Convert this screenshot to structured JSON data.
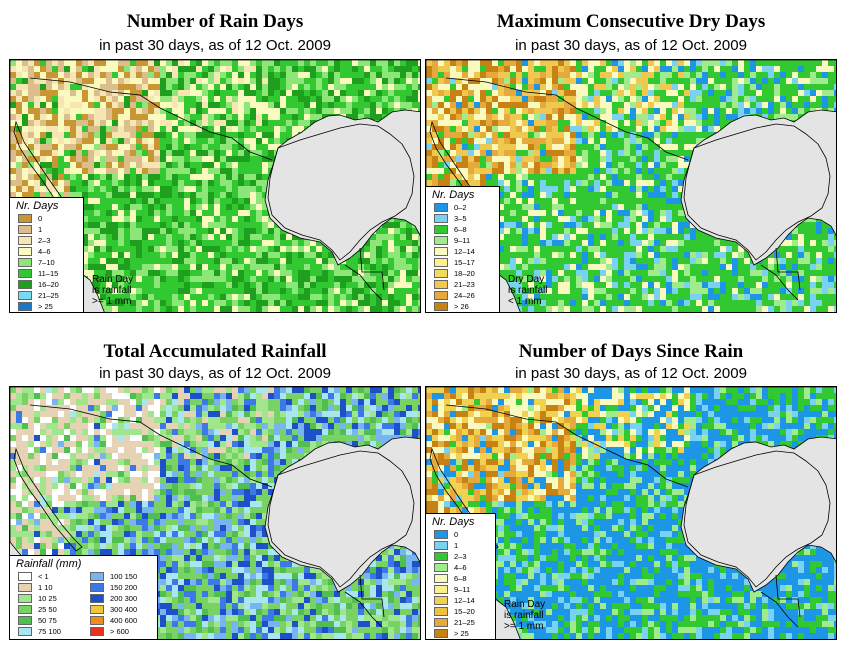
{
  "panels": [
    {
      "title": "Number of Rain Days",
      "subtitle": "in past 30 days, as of  12 Oct. 2009",
      "legend_title": "Nr. Days",
      "note": [
        "Rain Day",
        "is rainfall",
        ">= 1 mm"
      ],
      "legend": [
        {
          "label": "0",
          "color": "#c89632"
        },
        {
          "label": "1",
          "color": "#dcbe8c"
        },
        {
          "label": "2–3",
          "color": "#f5e6b4"
        },
        {
          "label": "4–6",
          "color": "#fafabe"
        },
        {
          "label": "7–10",
          "color": "#8ce678"
        },
        {
          "label": "11–15",
          "color": "#32c832"
        },
        {
          "label": "16–20",
          "color": "#1ea01e"
        },
        {
          "label": "21–25",
          "color": "#78dcf0"
        },
        {
          "label": "> 25",
          "color": "#1e78c8"
        }
      ]
    },
    {
      "title": "Maximum Consecutive Dry Days",
      "subtitle": "in past 30 days, as of  12 Oct. 2009",
      "legend_title": "Nr. Days",
      "note": [
        "Dry Day",
        "is rainfall",
        "< 1 mm"
      ],
      "legend": [
        {
          "label": "0–2",
          "color": "#1e96e6"
        },
        {
          "label": "3–5",
          "color": "#78d2f0"
        },
        {
          "label": "6–8",
          "color": "#32c832"
        },
        {
          "label": "9–11",
          "color": "#a0eb8c"
        },
        {
          "label": "12–14",
          "color": "#fafabe"
        },
        {
          "label": "15–17",
          "color": "#faf08c"
        },
        {
          "label": "18–20",
          "color": "#f0dc5a"
        },
        {
          "label": "21–23",
          "color": "#f0c850"
        },
        {
          "label": "24–26",
          "color": "#e6aa3c"
        },
        {
          "label": "> 26",
          "color": "#c88214"
        }
      ]
    },
    {
      "title": "Total Accumulated Rainfall",
      "subtitle": "in past 30 days, as of  12 Oct. 2009",
      "legend_title": "Rainfall (mm)",
      "note": [],
      "legend": [
        {
          "label": "< 1",
          "color": "#ffffff"
        },
        {
          "label": "1   10",
          "color": "#e6d2b4"
        },
        {
          "label": "10   25",
          "color": "#a0e68c"
        },
        {
          "label": "25   50",
          "color": "#78d264"
        },
        {
          "label": "50   75",
          "color": "#50be50"
        },
        {
          "label": "75   100",
          "color": "#aae6f0"
        },
        {
          "label": "100  150",
          "color": "#78b4f0"
        },
        {
          "label": "150  200",
          "color": "#3c78e6"
        },
        {
          "label": "200  300",
          "color": "#1e50c8"
        },
        {
          "label": "300  400",
          "color": "#f0c83c"
        },
        {
          "label": "400  600",
          "color": "#f08c1e"
        },
        {
          "label": "> 600",
          "color": "#e6321e"
        }
      ]
    },
    {
      "title": "Number of Days Since Rain",
      "subtitle": "in past 30 days, as of  12 Oct. 2009",
      "legend_title": "Nr. Days",
      "note": [
        "Rain Day",
        "is rainfall",
        ">= 1 mm"
      ],
      "legend": [
        {
          "label": "0",
          "color": "#1e96e6"
        },
        {
          "label": "1",
          "color": "#78d2f0"
        },
        {
          "label": "2–3",
          "color": "#32c832"
        },
        {
          "label": "4–6",
          "color": "#a0eb8c"
        },
        {
          "label": "6–8",
          "color": "#fafabe"
        },
        {
          "label": "9–11",
          "color": "#faf08c"
        },
        {
          "label": "12–14",
          "color": "#f0d250"
        },
        {
          "label": "15–20",
          "color": "#f0c040"
        },
        {
          "label": "21–25",
          "color": "#e6aa3c"
        },
        {
          "label": "> 25",
          "color": "#c88214"
        }
      ]
    }
  ],
  "colors": {
    "ocean": "#e4e4e4",
    "border": "#000000"
  }
}
